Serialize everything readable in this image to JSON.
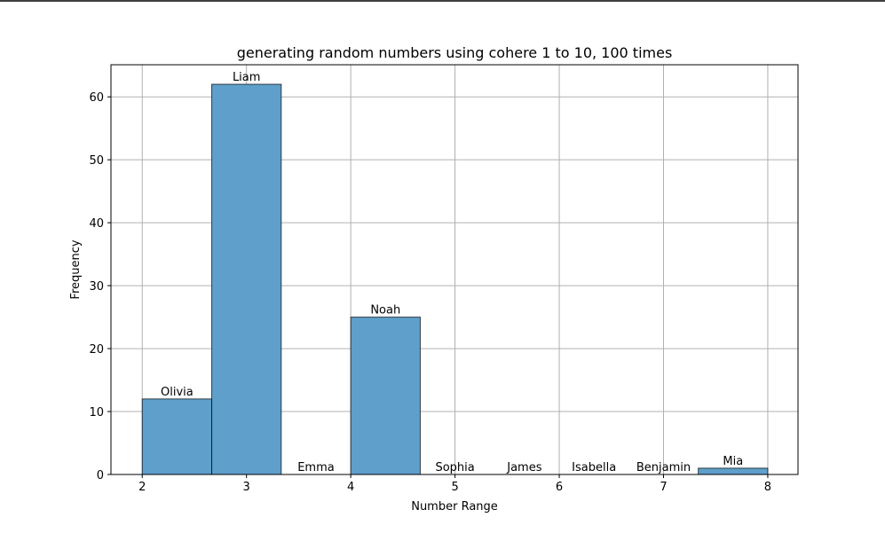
{
  "chart_data": {
    "type": "histogram",
    "title": "generating random numbers using cohere 1 to 10, 100 times",
    "x_label": "Number Range",
    "y_label": "Frequency",
    "bins": [
      2,
      2.6667,
      3.3333,
      4,
      4.6667,
      5.3333,
      6,
      6.6667,
      7.3333,
      8
    ],
    "values": [
      12,
      62,
      0,
      25,
      0,
      0,
      0,
      0,
      1
    ],
    "bar_labels": [
      "Olivia",
      "Liam",
      "Emma",
      "Noah",
      "Sophia",
      "James",
      "Isabella",
      "Benjamin",
      "Mia"
    ],
    "color": "#5f9fcb",
    "xlim": [
      1.7,
      8.29
    ],
    "xticks": [
      2,
      3,
      4,
      5,
      6,
      7,
      8
    ],
    "ylim": [
      0,
      65.1
    ],
    "yticks": [
      0,
      10,
      20,
      30,
      40,
      50,
      60
    ],
    "grid": true
  }
}
